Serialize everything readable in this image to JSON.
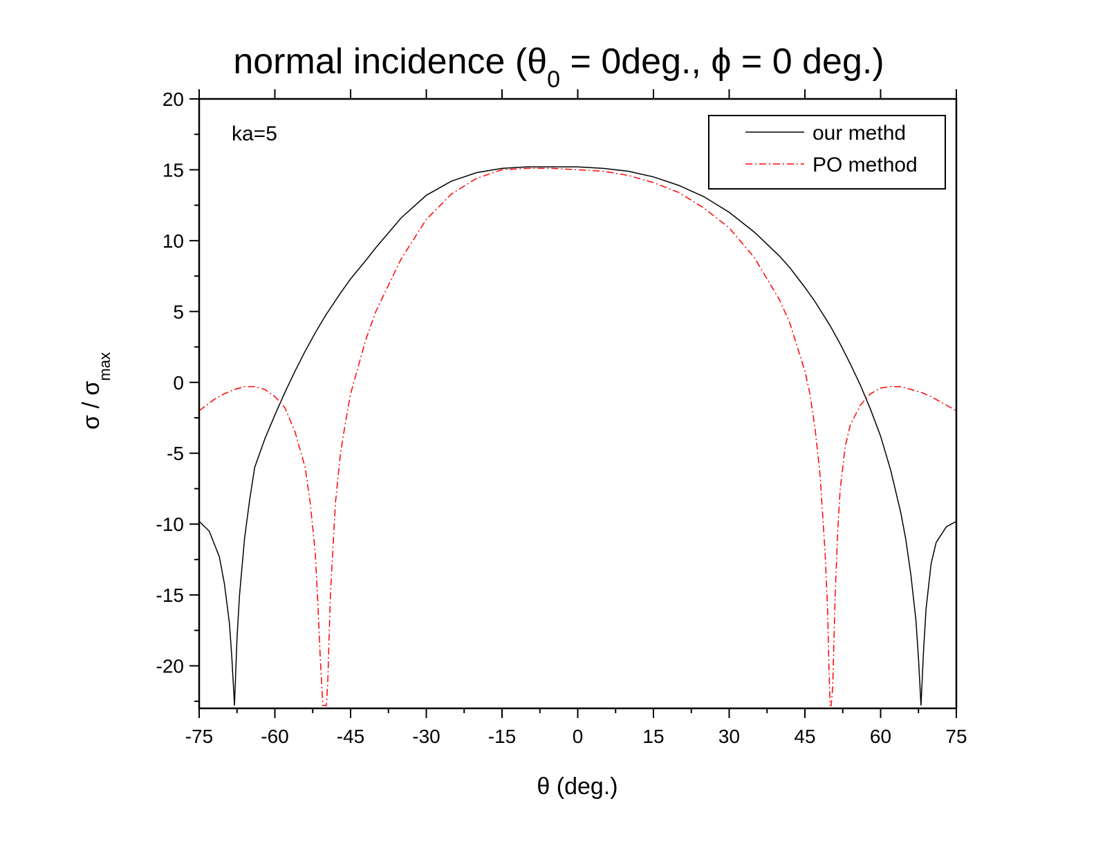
{
  "chart_data": {
    "type": "line",
    "title_prefix": "normal incidence (",
    "title_theta": "θ",
    "title_sub": "0",
    "title_middle": " = 0deg., ",
    "title_phi": "ϕ",
    "title_suffix": " = 0 deg.)",
    "xlabel": "θ (deg.)",
    "ylabel_main": "σ / σ",
    "ylabel_sub": "max",
    "annotation": "ka=5",
    "xlim": [
      -75,
      75
    ],
    "ylim": [
      -23,
      20
    ],
    "xticks": [
      -75,
      -60,
      -45,
      -30,
      -15,
      0,
      15,
      30,
      45,
      60,
      75
    ],
    "xtick_labels": [
      "-75",
      "-60",
      "-45",
      "-30",
      "-15",
      "0",
      "15",
      "30",
      "45",
      "60",
      "75"
    ],
    "yticks": [
      -20,
      -15,
      -10,
      -5,
      0,
      5,
      10,
      15,
      20
    ],
    "ytick_labels": [
      "-20",
      "-15",
      "-10",
      "-5",
      "0",
      "5",
      "10",
      "15",
      "20"
    ],
    "series": [
      {
        "name": "our methd",
        "color": "#000000",
        "dash": "solid",
        "x": [
          -75,
          -73,
          -71,
          -70,
          -69,
          -68.5,
          -68,
          -67.5,
          -67,
          -66,
          -65,
          -64,
          -62,
          -60,
          -58,
          -56,
          -54,
          -52,
          -50,
          -47,
          -45,
          -42,
          -40,
          -35,
          -30,
          -25,
          -20,
          -15,
          -10,
          -5,
          0,
          5,
          10,
          15,
          20,
          25,
          30,
          35,
          40,
          42,
          45,
          47,
          50,
          52,
          54,
          56,
          58,
          60,
          62,
          64,
          65,
          66,
          67,
          67.5,
          68,
          68.5,
          69,
          70,
          71,
          73,
          75
        ],
        "y": [
          -9.8,
          -10.5,
          -12.3,
          -14.2,
          -17.0,
          -19.5,
          -22.8,
          -18.0,
          -15.0,
          -11.0,
          -8.3,
          -6.0,
          -4.0,
          -2.3,
          -0.7,
          0.8,
          2.2,
          3.5,
          4.7,
          6.3,
          7.3,
          8.6,
          9.5,
          11.6,
          13.2,
          14.2,
          14.8,
          15.1,
          15.2,
          15.2,
          15.2,
          15.1,
          14.9,
          14.5,
          13.9,
          13.1,
          12.0,
          10.6,
          8.9,
          8.1,
          6.7,
          5.7,
          4.0,
          2.7,
          1.3,
          -0.2,
          -1.9,
          -3.8,
          -6.2,
          -9.2,
          -11.1,
          -13.6,
          -16.8,
          -19.5,
          -22.8,
          -19.0,
          -16.0,
          -12.8,
          -11.3,
          -10.2,
          -9.8
        ]
      },
      {
        "name": "PO method",
        "color": "#ff0000",
        "dash": "dashdot",
        "x": [
          -75,
          -72,
          -70,
          -68,
          -66,
          -64,
          -62,
          -60,
          -58,
          -56,
          -54,
          -53,
          -52,
          -51.5,
          -51,
          -50.5,
          -50.2,
          -50,
          -49.8,
          -49.5,
          -49,
          -48,
          -47,
          -46,
          -45,
          -42,
          -40,
          -35,
          -30,
          -25,
          -20,
          -15,
          -10,
          -5,
          0,
          5,
          10,
          15,
          20,
          25,
          30,
          35,
          40,
          42,
          45,
          46,
          47,
          48,
          49,
          49.5,
          49.8,
          50,
          50.2,
          50.5,
          51,
          51.5,
          52,
          53,
          54,
          56,
          58,
          60,
          62,
          64,
          66,
          68,
          70,
          72,
          75
        ],
        "y": [
          -2.0,
          -1.2,
          -0.8,
          -0.5,
          -0.3,
          -0.3,
          -0.5,
          -1.0,
          -1.8,
          -3.5,
          -6.0,
          -8.5,
          -12.0,
          -15.5,
          -19.5,
          -22.8,
          -22.8,
          -22.8,
          -22.8,
          -21.0,
          -15.0,
          -8.5,
          -5.0,
          -2.8,
          -0.8,
          3.0,
          5.0,
          8.7,
          11.5,
          13.3,
          14.4,
          15.0,
          15.1,
          15.1,
          15.0,
          14.9,
          14.6,
          14.1,
          13.4,
          12.3,
          10.9,
          8.8,
          5.8,
          4.2,
          0.8,
          -0.8,
          -3.2,
          -6.5,
          -12.0,
          -16.0,
          -20.5,
          -22.8,
          -22.8,
          -21.5,
          -15.0,
          -10.5,
          -7.5,
          -4.5,
          -3.0,
          -1.6,
          -0.8,
          -0.4,
          -0.3,
          -0.3,
          -0.5,
          -0.7,
          -1.0,
          -1.4,
          -2.0
        ]
      }
    ]
  }
}
